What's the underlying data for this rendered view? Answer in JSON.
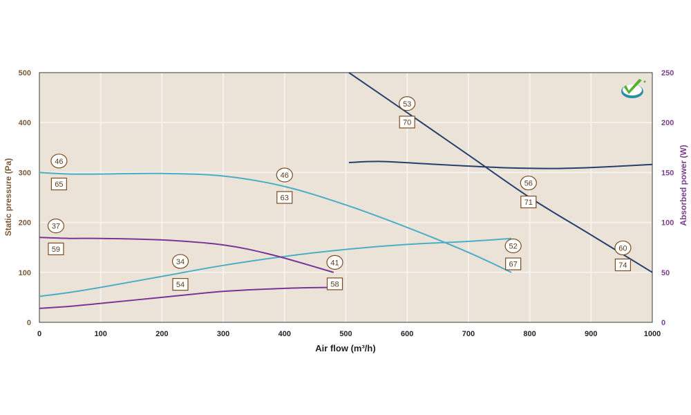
{
  "chart_data": {
    "type": "line",
    "xlabel": "Air flow (m³/h)",
    "ylabel_left": "Static pressure (Pa)",
    "ylabel_right": "Absorbed power (W)",
    "xlim": [
      0,
      1000
    ],
    "ylim_left": [
      0,
      500
    ],
    "ylim_right": [
      0,
      250
    ],
    "x_ticks": [
      "0",
      "100",
      "200",
      "300",
      "400",
      "500",
      "600",
      "700",
      "800",
      "900",
      "1000"
    ],
    "y_left_ticks": [
      "0",
      "100",
      "200",
      "300",
      "400",
      "500"
    ],
    "y_right_ticks": [
      "0",
      "50",
      "100",
      "150",
      "200",
      "250"
    ],
    "grid": true,
    "colors": {
      "plot_bg": "#ebe3d8",
      "grid": "#f6f2ec",
      "light_blue": "#4aaec8",
      "purple": "#7b3497",
      "dark_blue": "#253f6e",
      "annotation": "#7a4a1e"
    },
    "series": [
      {
        "id": "p1",
        "axis": "left",
        "color": "light_blue",
        "x": [
          0,
          50,
          100,
          200,
          300,
          400,
          500,
          600,
          700,
          770
        ],
        "y": [
          300,
          297,
          297,
          298,
          293,
          272,
          235,
          190,
          140,
          100
        ]
      },
      {
        "id": "w1",
        "axis": "right",
        "color": "light_blue",
        "x": [
          0,
          50,
          100,
          200,
          300,
          400,
          500,
          600,
          700,
          770
        ],
        "y": [
          26,
          30,
          35,
          46,
          57,
          66,
          73,
          78,
          81,
          84
        ]
      },
      {
        "id": "p2",
        "axis": "left",
        "color": "purple",
        "x": [
          0,
          50,
          100,
          200,
          300,
          380,
          480
        ],
        "y": [
          170,
          168,
          168,
          165,
          155,
          135,
          100
        ]
      },
      {
        "id": "w2",
        "axis": "right",
        "color": "purple",
        "x": [
          0,
          50,
          100,
          200,
          300,
          400,
          480
        ],
        "y": [
          14,
          16,
          19,
          25,
          31,
          34,
          35
        ]
      },
      {
        "id": "p3",
        "axis": "left",
        "color": "dark_blue",
        "x": [
          505,
          600,
          700,
          800,
          900,
          1000
        ],
        "y": [
          500,
          420,
          335,
          250,
          175,
          100
        ]
      },
      {
        "id": "w3",
        "axis": "right",
        "color": "dark_blue",
        "x": [
          505,
          560,
          650,
          750,
          830,
          900,
          1000
        ],
        "y": [
          160,
          161,
          158,
          155,
          154,
          155,
          158
        ]
      }
    ],
    "annotations": [
      {
        "shape": "circle",
        "label": "46",
        "x": 32,
        "y": 323
      },
      {
        "shape": "box",
        "label": "65",
        "x": 32,
        "y": 277
      },
      {
        "shape": "circle",
        "label": "37",
        "x": 27,
        "y": 193
      },
      {
        "shape": "box",
        "label": "59",
        "x": 27,
        "y": 147
      },
      {
        "shape": "circle",
        "label": "34",
        "x": 230,
        "y": 122
      },
      {
        "shape": "box",
        "label": "54",
        "x": 230,
        "y": 76
      },
      {
        "shape": "circle",
        "label": "46",
        "x": 400,
        "y": 295
      },
      {
        "shape": "box",
        "label": "63",
        "x": 400,
        "y": 250
      },
      {
        "shape": "circle",
        "label": "41",
        "x": 482,
        "y": 120
      },
      {
        "shape": "box",
        "label": "58",
        "x": 482,
        "y": 77
      },
      {
        "shape": "circle",
        "label": "53",
        "x": 600,
        "y": 438
      },
      {
        "shape": "box",
        "label": "70",
        "x": 600,
        "y": 401
      },
      {
        "shape": "circle",
        "label": "56",
        "x": 798,
        "y": 279
      },
      {
        "shape": "box",
        "label": "71",
        "x": 798,
        "y": 241
      },
      {
        "shape": "circle",
        "label": "52",
        "x": 773,
        "y": 153
      },
      {
        "shape": "box",
        "label": "67",
        "x": 773,
        "y": 117
      },
      {
        "shape": "circle",
        "label": "60",
        "x": 952,
        "y": 149
      },
      {
        "shape": "box",
        "label": "74",
        "x": 952,
        "y": 115
      }
    ]
  }
}
